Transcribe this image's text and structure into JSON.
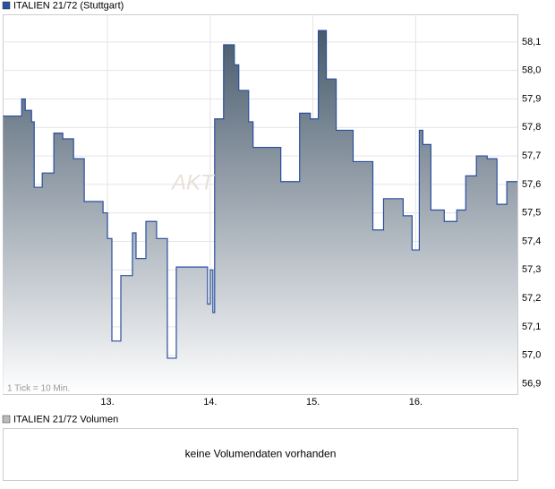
{
  "chart_data": {
    "type": "step-area",
    "title": "ITALIEN 21/72 (Stuttgart)",
    "note": "1 Tick = 10 Min.",
    "watermark": "AKT",
    "color": "#2a4f9e",
    "x": [
      11.983,
      12.165,
      12.2,
      12.261,
      12.287,
      12.365,
      12.478,
      12.565,
      12.67,
      12.774,
      12.957,
      13.0,
      13.043,
      13.13,
      13.243,
      13.278,
      13.374,
      13.478,
      13.583,
      13.67,
      13.974,
      14.0,
      14.026,
      14.043,
      14.13,
      14.235,
      14.278,
      14.374,
      14.417,
      14.687,
      14.87,
      14.974,
      15.052,
      15.13,
      15.226,
      15.391,
      15.583,
      15.687,
      15.878,
      15.965,
      16.035,
      16.07,
      16.148,
      16.278,
      16.4,
      16.487,
      16.591,
      16.696,
      16.791,
      16.887
    ],
    "values": [
      57.84,
      57.9,
      57.86,
      57.82,
      57.59,
      57.64,
      57.78,
      57.76,
      57.69,
      57.54,
      57.5,
      57.41,
      57.05,
      57.28,
      57.43,
      57.34,
      57.47,
      57.41,
      56.99,
      57.31,
      57.18,
      57.3,
      57.15,
      57.83,
      58.09,
      58.02,
      57.93,
      57.82,
      57.73,
      57.61,
      57.85,
      57.83,
      58.14,
      57.97,
      57.79,
      57.68,
      57.44,
      57.55,
      57.49,
      57.37,
      57.79,
      57.74,
      57.51,
      57.47,
      57.51,
      57.63,
      57.7,
      57.69,
      57.53,
      57.61
    ],
    "xlim": [
      11.98,
      16.99
    ],
    "xticks": [
      {
        "value": 13,
        "label": "13."
      },
      {
        "value": 14,
        "label": "14."
      },
      {
        "value": 15,
        "label": "15."
      },
      {
        "value": 16,
        "label": "16."
      }
    ],
    "ylim": [
      56.864,
      58.197
    ],
    "yticks": [
      {
        "value": 56.9,
        "label": "56,9"
      },
      {
        "value": 57.0,
        "label": "57,0"
      },
      {
        "value": 57.1,
        "label": "57,1"
      },
      {
        "value": 57.2,
        "label": "57,2"
      },
      {
        "value": 57.3,
        "label": "57,3"
      },
      {
        "value": 57.4,
        "label": "57,4"
      },
      {
        "value": 57.5,
        "label": "57,5"
      },
      {
        "value": 57.6,
        "label": "57,6"
      },
      {
        "value": 57.7,
        "label": "57,7"
      },
      {
        "value": 57.8,
        "label": "57,8"
      },
      {
        "value": 57.9,
        "label": "57,9"
      },
      {
        "value": 58.0,
        "label": "58,0"
      },
      {
        "value": 58.1,
        "label": "58,1"
      }
    ],
    "grid": true,
    "volume": {
      "title": "ITALIEN 21/72 Volumen",
      "message": "keine Volumendaten vorhanden"
    }
  }
}
